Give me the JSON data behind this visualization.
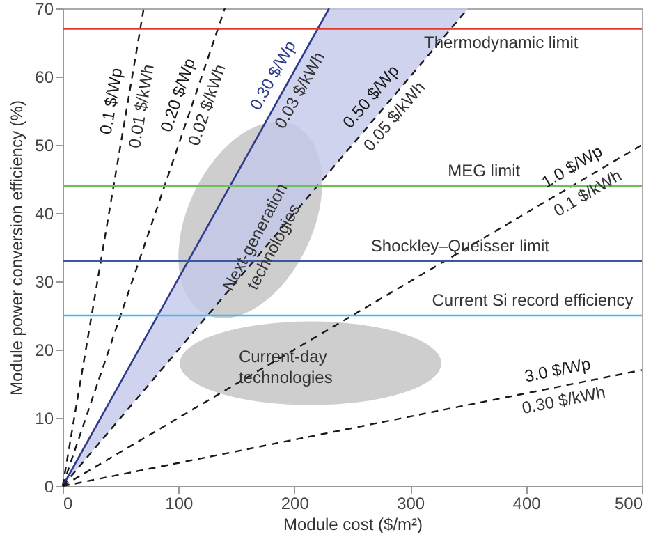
{
  "chart_data": {
    "type": "line",
    "xlabel": "Module cost ($/m²)",
    "ylabel": "Module  power conversion efficiency (%)",
    "xlim": [
      0,
      500
    ],
    "ylim": [
      0,
      70
    ],
    "xticks": [
      0,
      100,
      200,
      300,
      400,
      500
    ],
    "yticks": [
      0,
      10,
      20,
      30,
      40,
      50,
      60,
      70
    ],
    "grid": false,
    "marker": "none",
    "line_style": "dashed",
    "series": [
      {
        "name": "0.1 $/Wp",
        "color": "#1a1a1a",
        "x": [
          0,
          70
        ],
        "values": [
          0,
          70
        ]
      },
      {
        "name": "0.20 $/Wp",
        "color": "#1a1a1a",
        "x": [
          0,
          140
        ],
        "values": [
          0,
          70
        ]
      },
      {
        "name": "0.30 $/Wp",
        "color": "#2e3a8c",
        "line_style": "solid",
        "x": [
          0,
          230
        ],
        "values": [
          0,
          70
        ]
      },
      {
        "name": "0.50 $/Wp",
        "color": "#1a1a1a",
        "x": [
          0,
          230,
          350
        ],
        "values": [
          0,
          46,
          70
        ],
        "lower": [
          0,
          46,
          70
        ],
        "upper": [
          0,
          70,
          70
        ]
      },
      {
        "name": "1.0 $/Wp",
        "color": "#1a1a1a",
        "x": [
          0,
          500
        ],
        "values": [
          0,
          50
        ]
      },
      {
        "name": "3.0 $/Wp",
        "color": "#1a1a1a",
        "x": [
          0,
          500
        ],
        "values": [
          0,
          17
        ]
      }
    ],
    "ref_lines": [
      {
        "axis": "y",
        "value": 67,
        "label": "Thermodynamic limit",
        "color": "#e03a2f"
      },
      {
        "axis": "y",
        "value": 44,
        "label": "MEG limit",
        "color": "#6cbf5a"
      },
      {
        "axis": "y",
        "value": 33,
        "label": "Shockley–Queisser limit",
        "color": "#3a57a0"
      },
      {
        "axis": "y",
        "value": 25,
        "label": "Current Si record efficiency",
        "color": "#45b9ea"
      }
    ],
    "annotations": [
      {
        "text": "0.01 $/kWh",
        "x": 56,
        "y": 56
      },
      {
        "text": "0.02 $/kWh",
        "x": 113,
        "y": 56.5
      },
      {
        "text": "0.03 $/kWh",
        "x": 194,
        "y": 59
      },
      {
        "text": "0.05 $/kWh",
        "x": 277,
        "y": 55.5
      },
      {
        "text": "0.1 $/kWh",
        "x": 447,
        "y": 44.7
      },
      {
        "text": "0.30 $/kWh",
        "x": 430,
        "y": 14.6
      },
      "Next-generation technologies",
      "Current-day technologies"
    ]
  }
}
